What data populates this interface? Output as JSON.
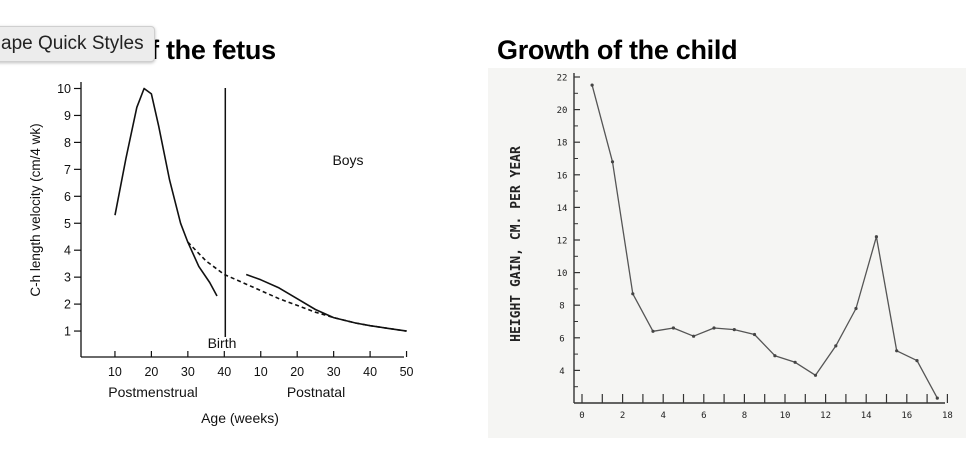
{
  "titles": {
    "left": "Growth of the fetus",
    "right": "Growth of the child"
  },
  "tooltip": {
    "text": "ape Quick Styles"
  },
  "chart_data": [
    {
      "type": "line",
      "ylabel": "C-h length velocity (cm/4 wk)",
      "xlabel": "Age (weeks)",
      "x_group_labels": [
        "Postmenstrual",
        "Postnatal"
      ],
      "annotations": [
        "Boys",
        "Birth"
      ],
      "yticks": [
        1,
        2,
        3,
        4,
        5,
        6,
        7,
        8,
        9,
        10
      ],
      "xticks_postmenstrual": [
        "10",
        "20",
        "30",
        "40"
      ],
      "xticks_postnatal": [
        "10",
        "20",
        "30",
        "40",
        "50"
      ],
      "ylim": [
        0,
        10.5
      ],
      "grid": false,
      "series": [
        {
          "style": "solid",
          "x": [
            10,
            13,
            16,
            18,
            20,
            22,
            25,
            28,
            30,
            33,
            36,
            38
          ],
          "y": [
            5.3,
            7.4,
            9.3,
            10.0,
            9.8,
            8.6,
            6.6,
            5.0,
            4.3,
            3.4,
            2.8,
            2.3
          ]
        },
        {
          "style": "dashed",
          "x": [
            30,
            35,
            40,
            45,
            50,
            55,
            60,
            65,
            70,
            76,
            80,
            85,
            90
          ],
          "y": [
            4.3,
            3.6,
            3.1,
            2.8,
            2.5,
            2.2,
            1.95,
            1.7,
            1.5,
            1.3,
            1.2,
            1.1,
            1.0
          ]
        },
        {
          "style": "solid",
          "x": [
            46,
            50,
            55,
            60,
            65,
            70,
            76,
            80,
            85,
            90
          ],
          "y": [
            3.1,
            2.9,
            2.6,
            2.2,
            1.8,
            1.5,
            1.3,
            1.2,
            1.1,
            1.0
          ]
        }
      ]
    },
    {
      "type": "line",
      "ylabel": "HEIGHT GAIN, CM. PER YEAR",
      "yticks": [
        "4",
        "6",
        "8",
        "10",
        "12",
        "14",
        "16",
        "18",
        "20",
        "22"
      ],
      "xticks": [
        "0",
        "2",
        "4",
        "6",
        "8",
        "10",
        "12",
        "14",
        "16",
        "18"
      ],
      "ylim": [
        2,
        22
      ],
      "xlim": [
        0,
        18
      ],
      "grid": false,
      "series": [
        {
          "x": [
            0.5,
            1.5,
            2.5,
            3.5,
            4.5,
            5.5,
            6.5,
            7.5,
            8.5,
            9.5,
            10.5,
            11.5,
            12.5,
            13.5,
            14.5,
            15.5,
            16.5,
            17.5
          ],
          "y": [
            21.5,
            16.8,
            8.7,
            6.4,
            6.6,
            6.1,
            6.6,
            6.5,
            6.2,
            4.9,
            4.5,
            3.7,
            5.5,
            7.8,
            12.2,
            5.2,
            4.6,
            2.3
          ]
        }
      ]
    }
  ]
}
